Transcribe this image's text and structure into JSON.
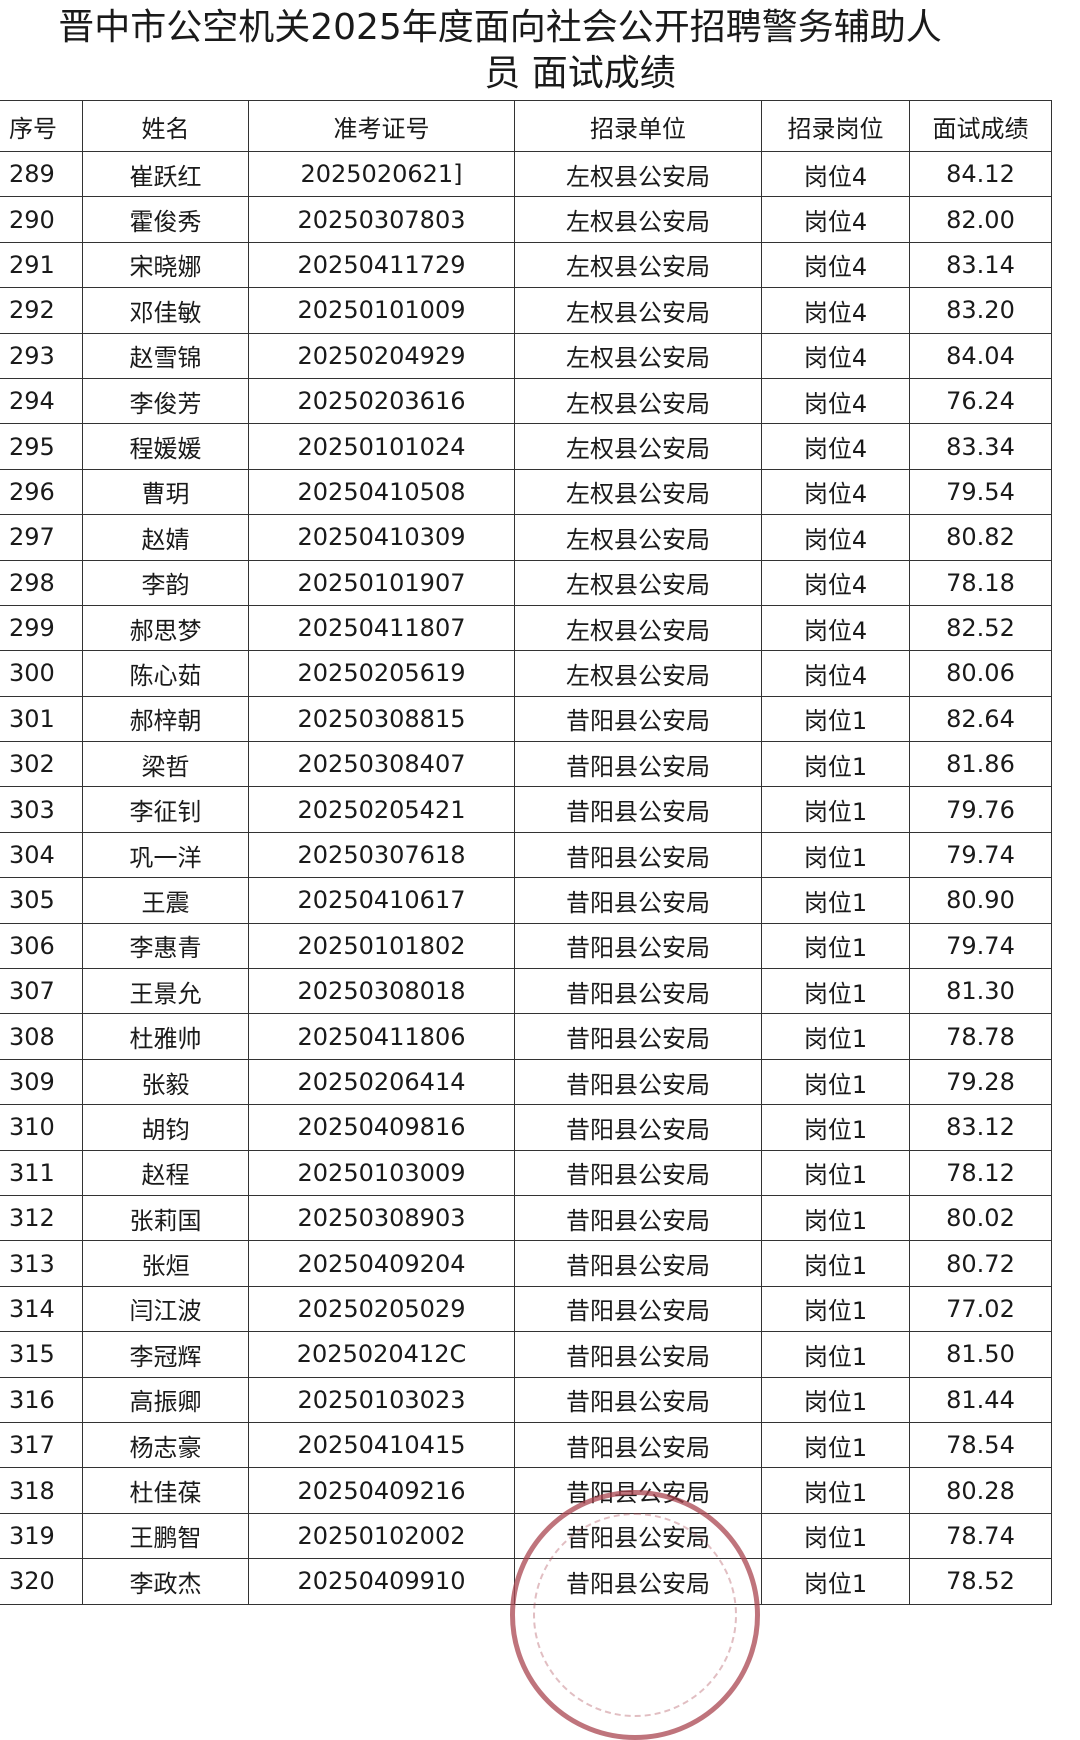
{
  "title_line1": "晋中市公空机关2025年度面向社会公开招聘警务辅助人",
  "title_line2": "员 面试成绩",
  "headers": [
    "序号",
    "姓名",
    "准考证号",
    "招录单位",
    "招录岗位",
    "面试成绩"
  ],
  "rows": [
    [
      "289",
      "崔跃红",
      "2025020621]",
      "左权县公安局",
      "岗位4",
      "84.12"
    ],
    [
      "290",
      "霍俊秀",
      "20250307803",
      "左权县公安局",
      "岗位4",
      "82.00"
    ],
    [
      "291",
      "宋晓娜",
      "20250411729",
      "左权县公安局",
      "岗位4",
      "83.14"
    ],
    [
      "292",
      "邓佳敏",
      "20250101009",
      "左权县公安局",
      "岗位4",
      "83.20"
    ],
    [
      "293",
      "赵雪锦",
      "20250204929",
      "左权县公安局",
      "岗位4",
      "84.04"
    ],
    [
      "294",
      "李俊芳",
      "20250203616",
      "左权县公安局",
      "岗位4",
      "76.24"
    ],
    [
      "295",
      "程媛媛",
      "20250101024",
      "左权县公安局",
      "岗位4",
      "83.34"
    ],
    [
      "296",
      "曹玥",
      "20250410508",
      "左权县公安局",
      "岗位4",
      "79.54"
    ],
    [
      "297",
      "赵婧",
      "20250410309",
      "左权县公安局",
      "岗位4",
      "80.82"
    ],
    [
      "298",
      "李韵",
      "20250101907",
      "左权县公安局",
      "岗位4",
      "78.18"
    ],
    [
      "299",
      "郝思梦",
      "20250411807",
      "左权县公安局",
      "岗位4",
      "82.52"
    ],
    [
      "300",
      "陈心茹",
      "20250205619",
      "左权县公安局",
      "岗位4",
      "80.06"
    ],
    [
      "301",
      "郝梓朝",
      "20250308815",
      "昔阳县公安局",
      "岗位1",
      "82.64"
    ],
    [
      "302",
      "梁哲",
      "20250308407",
      "昔阳县公安局",
      "岗位1",
      "81.86"
    ],
    [
      "303",
      "李征钊",
      "20250205421",
      "昔阳县公安局",
      "岗位1",
      "79.76"
    ],
    [
      "304",
      "巩一洋",
      "20250307618",
      "昔阳县公安局",
      "岗位1",
      "79.74"
    ],
    [
      "305",
      "王震",
      "20250410617",
      "昔阳县公安局",
      "岗位1",
      "80.90"
    ],
    [
      "306",
      "李惠青",
      "20250101802",
      "昔阳县公安局",
      "岗位1",
      "79.74"
    ],
    [
      "307",
      "王景允",
      "20250308018",
      "昔阳县公安局",
      "岗位1",
      "81.30"
    ],
    [
      "308",
      "杜雅帅",
      "20250411806",
      "昔阳县公安局",
      "岗位1",
      "78.78"
    ],
    [
      "309",
      "张毅",
      "20250206414",
      "昔阳县公安局",
      "岗位1",
      "79.28"
    ],
    [
      "310",
      "胡钧",
      "20250409816",
      "昔阳县公安局",
      "岗位1",
      "83.12"
    ],
    [
      "311",
      "赵程",
      "20250103009",
      "昔阳县公安局",
      "岗位1",
      "78.12"
    ],
    [
      "312",
      "张莉国",
      "20250308903",
      "昔阳县公安局",
      "岗位1",
      "80.02"
    ],
    [
      "313",
      "张烜",
      "20250409204",
      "昔阳县公安局",
      "岗位1",
      "80.72"
    ],
    [
      "314",
      "闫江波",
      "20250205029",
      "昔阳县公安局",
      "岗位1",
      "77.02"
    ],
    [
      "315",
      "李冠辉",
      "2025020412C",
      "昔阳县公安局",
      "岗位1",
      "81.50"
    ],
    [
      "316",
      "高振卿",
      "20250103023",
      "昔阳县公安局",
      "岗位1",
      "81.44"
    ],
    [
      "317",
      "杨志豪",
      "20250410415",
      "昔阳县公安局",
      "岗位1",
      "78.54"
    ],
    [
      "318",
      "杜佳葆",
      "20250409216",
      "昔阳县公安局",
      "岗位1",
      "80.28"
    ],
    [
      "319",
      "王鹏智",
      "20250102002",
      "昔阳县公安局",
      "岗位1",
      "78.74"
    ],
    [
      "320",
      "李政杰",
      "20250409910",
      "昔阳县公安局",
      "岗位1",
      "78.52"
    ]
  ],
  "stamp_color": "#aa4650"
}
